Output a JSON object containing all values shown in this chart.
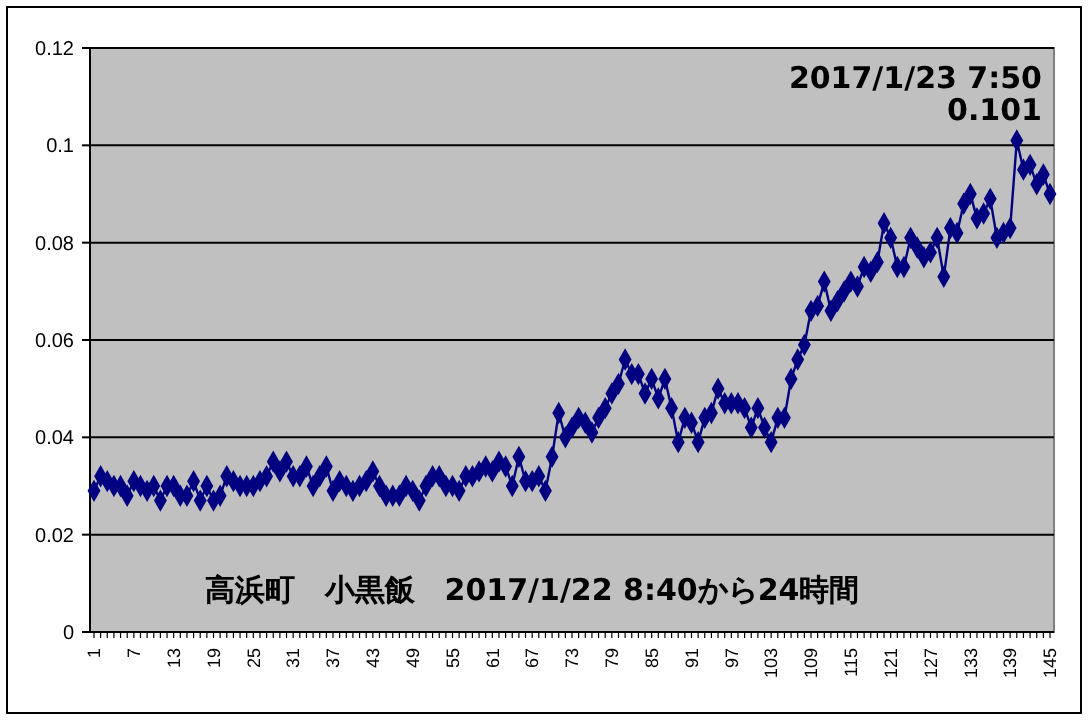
{
  "chart_data": {
    "type": "line",
    "categories": [
      "1",
      null,
      null,
      null,
      null,
      null,
      "7",
      null,
      null,
      null,
      null,
      null,
      "13",
      null,
      null,
      null,
      null,
      null,
      "19",
      null,
      null,
      null,
      null,
      null,
      "25",
      null,
      null,
      null,
      null,
      null,
      "31",
      null,
      null,
      null,
      null,
      null,
      "37",
      null,
      null,
      null,
      null,
      null,
      "43",
      null,
      null,
      null,
      null,
      null,
      "49",
      null,
      null,
      null,
      null,
      null,
      "55",
      null,
      null,
      null,
      null,
      null,
      "61",
      null,
      null,
      null,
      null,
      null,
      "67",
      null,
      null,
      null,
      null,
      null,
      "73",
      null,
      null,
      null,
      null,
      null,
      "79",
      null,
      null,
      null,
      null,
      null,
      "85",
      null,
      null,
      null,
      null,
      null,
      "91",
      null,
      null,
      null,
      null,
      null,
      "97",
      null,
      null,
      null,
      null,
      null,
      "103",
      null,
      null,
      null,
      null,
      null,
      "109",
      null,
      null,
      null,
      null,
      null,
      "115",
      null,
      null,
      null,
      null,
      null,
      "121",
      null,
      null,
      null,
      null,
      null,
      "127",
      null,
      null,
      null,
      null,
      null,
      "133",
      null,
      null,
      null,
      null,
      null,
      "139",
      null,
      null,
      null,
      null,
      null,
      "145"
    ],
    "series": [
      {
        "color": "#000080",
        "values": [
          0.029,
          0.032,
          0.031,
          0.03,
          0.03,
          0.028,
          0.031,
          0.03,
          0.029,
          0.03,
          0.027,
          0.03,
          0.03,
          0.028,
          0.028,
          0.031,
          0.027,
          0.03,
          0.027,
          0.028,
          0.032,
          0.031,
          0.03,
          0.03,
          0.03,
          0.031,
          0.032,
          0.035,
          0.033,
          0.035,
          0.032,
          0.032,
          0.034,
          0.03,
          0.032,
          0.034,
          0.029,
          0.031,
          0.03,
          0.029,
          0.03,
          0.031,
          0.033,
          0.03,
          0.028,
          0.028,
          0.028,
          0.03,
          0.029,
          0.027,
          0.03,
          0.032,
          0.032,
          0.03,
          0.03,
          0.029,
          0.032,
          0.032,
          0.033,
          0.034,
          0.033,
          0.035,
          0.034,
          0.03,
          0.036,
          0.031,
          0.031,
          0.032,
          0.029,
          0.036,
          0.045,
          0.04,
          0.042,
          0.044,
          0.043,
          0.041,
          0.044,
          0.046,
          0.049,
          0.051,
          0.056,
          0.053,
          0.053,
          0.049,
          0.052,
          0.048,
          0.052,
          0.046,
          0.039,
          0.044,
          0.043,
          0.039,
          0.044,
          0.045,
          0.05,
          0.047,
          0.047,
          0.047,
          0.046,
          0.042,
          0.046,
          0.042,
          0.039,
          0.044,
          0.044,
          0.052,
          0.056,
          0.059,
          0.066,
          0.067,
          0.072,
          0.066,
          0.068,
          0.07,
          0.072,
          0.071,
          0.075,
          0.074,
          0.076,
          0.084,
          0.081,
          0.075,
          0.075,
          0.081,
          0.079,
          0.077,
          0.078,
          0.081,
          0.073,
          0.083,
          0.082,
          0.088,
          0.09,
          0.085,
          0.086,
          0.089,
          0.081,
          0.082,
          0.083,
          0.101,
          0.095,
          0.096,
          0.092,
          0.094,
          0.09
        ]
      }
    ],
    "ylim": [
      0,
      0.12
    ],
    "yticks": [
      0,
      0.02,
      0.04,
      0.06,
      0.08,
      0.1,
      0.12
    ],
    "grid": "y",
    "marker": "diamond",
    "line_style": "solid",
    "annotations": [
      "2017/1/23 7:50",
      "0.101",
      "高浜町　小黒飯　2017/1/22 8:40から24時間"
    ]
  }
}
